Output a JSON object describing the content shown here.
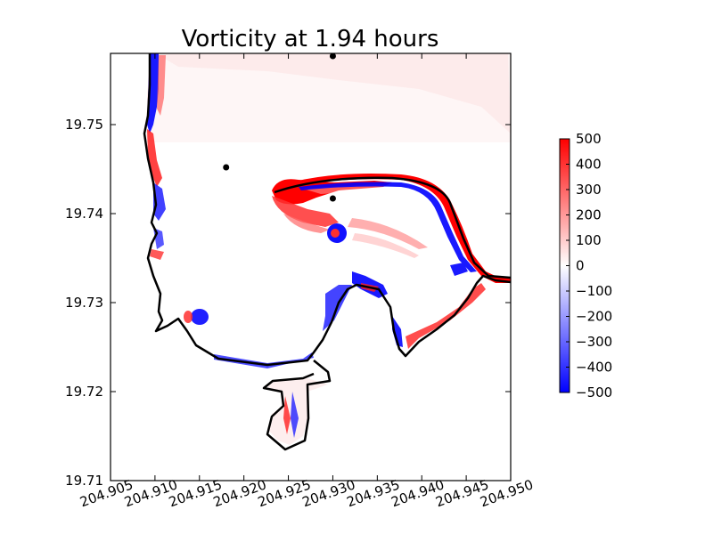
{
  "chart_data": {
    "type": "heatmap",
    "title": "Vorticity at 1.94 hours",
    "xlabel": "",
    "ylabel": "",
    "xlim": [
      204.905,
      204.95
    ],
    "ylim": [
      19.71,
      19.758
    ],
    "xticks": [
      "204.905",
      "204.910",
      "204.915",
      "204.920",
      "204.925",
      "204.930",
      "204.935",
      "204.940",
      "204.945",
      "204.950"
    ],
    "xtick_values": [
      204.905,
      204.91,
      204.915,
      204.92,
      204.925,
      204.93,
      204.935,
      204.94,
      204.945,
      204.95
    ],
    "yticks": [
      "19.71",
      "19.72",
      "19.73",
      "19.74",
      "19.75"
    ],
    "ytick_values": [
      19.71,
      19.72,
      19.73,
      19.74,
      19.75
    ],
    "colorbar": {
      "min": -500,
      "max": 500,
      "colormap": "bwr",
      "ticks": [
        "500",
        "400",
        "300",
        "200",
        "100",
        "0",
        "−100",
        "−200",
        "−300",
        "−400",
        "−500"
      ],
      "tick_values": [
        500,
        400,
        300,
        200,
        100,
        0,
        -100,
        -200,
        -300,
        -400,
        -500
      ]
    },
    "gauge_points": [
      {
        "x": 204.93,
        "y": 19.7577
      },
      {
        "x": 204.918,
        "y": 19.7452
      },
      {
        "x": 204.93,
        "y": 19.7417
      }
    ],
    "grid": false,
    "colors": {
      "positive": "#ff0000",
      "zero": "#ffffff",
      "negative": "#0000ff",
      "shoreline": "#000000"
    }
  }
}
